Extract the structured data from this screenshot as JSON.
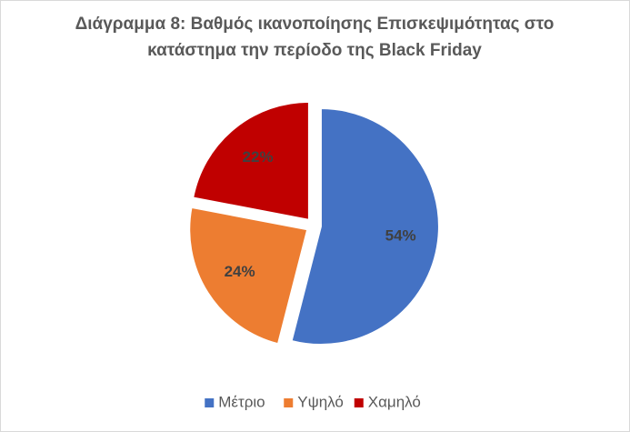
{
  "chart_data": {
    "type": "pie",
    "title": "Διάγραμμα 8: Βαθμός ικανοποίησης Επισκεψιμότητας στο κατάστημα την περίοδο της Black Friday",
    "categories": [
      "Μέτριο",
      "Υψηλό",
      "Χαμηλό"
    ],
    "values": [
      54,
      24,
      22
    ],
    "value_labels": [
      "54%",
      "24%",
      "22%"
    ],
    "colors": [
      "#4472c4",
      "#ed7d31",
      "#c00000"
    ],
    "legend": "bottom"
  }
}
